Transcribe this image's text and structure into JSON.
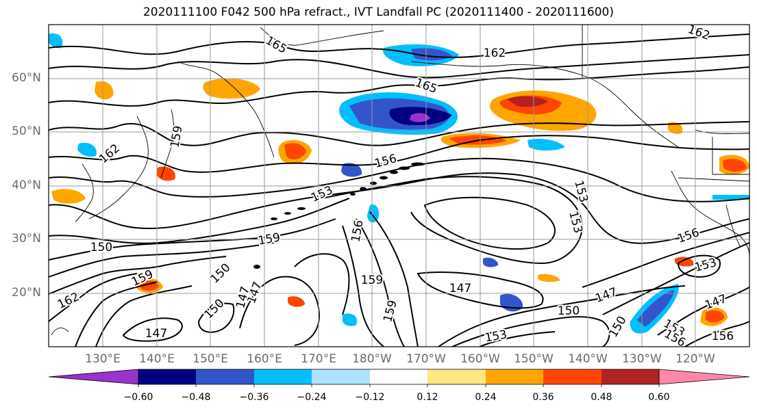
{
  "title": "2020111100 F042 500 hPa refract., IVT Landfall PC (2020111400 - 2020111600)",
  "lat_labels": [
    "60°N",
    "50°N",
    "40°N",
    "30°N",
    "20°N"
  ],
  "lon_labels": [
    "130°E",
    "140°E",
    "150°E",
    "160°E",
    "170°E",
    "180°W",
    "170°W",
    "160°W",
    "150°W",
    "140°W",
    "130°W",
    "120°W"
  ],
  "contour_labels": [
    "165",
    "162",
    "165",
    "162",
    "159",
    "162",
    "156",
    "153",
    "156",
    "153",
    "159",
    "153",
    "150",
    "150",
    "159",
    "147",
    "162",
    "150",
    "147",
    "147",
    "159",
    "159",
    "147",
    "147",
    "150",
    "150",
    "153",
    "153",
    "156",
    "156",
    "153",
    "147",
    "156"
  ],
  "colorbar": {
    "ticks": [
      "−0.60",
      "−0.48",
      "−0.36",
      "−0.24",
      "−0.12",
      "0.12",
      "0.24",
      "0.36",
      "0.48",
      "0.60"
    ],
    "colors": [
      "#9933cc",
      "#000080",
      "#3355cc",
      "#00bfff",
      "#aee2ff",
      "#ffffff",
      "#ffe680",
      "#ffa500",
      "#ff4500",
      "#b22222",
      "#ff88aa"
    ]
  }
}
